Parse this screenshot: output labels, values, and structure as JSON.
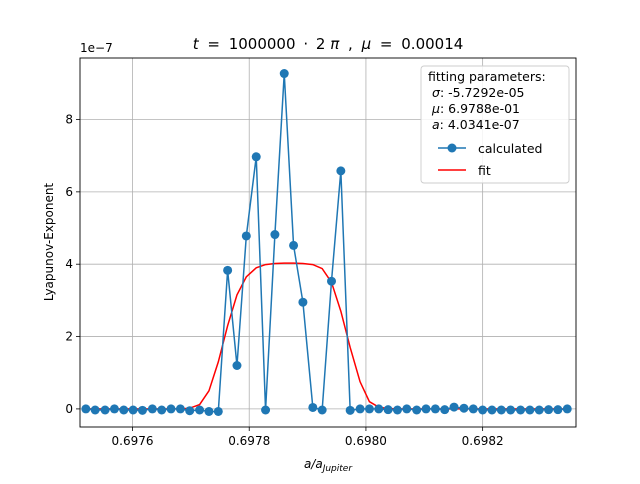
{
  "chart_data": {
    "type": "line",
    "title": {
      "t_symbol": "t",
      "t_value": "1000000",
      "mult": "·",
      "two": "2",
      "pi": "π",
      "sep": ",",
      "mu_symbol": "μ",
      "mu_value": "0.00014",
      "eq": "="
    },
    "xlabel": {
      "base": "a/a",
      "sub": "Jupiter"
    },
    "ylabel": "Lyapunov-Exponent",
    "offset_text": "1e−7",
    "xlim": [
      0.69751,
      0.69836
    ],
    "ylim": [
      -0.5,
      9.7
    ],
    "y_scale_factor": 1e-07,
    "x_ticks": [
      0.6976,
      0.6978,
      0.698,
      0.6982
    ],
    "x_tick_labels": [
      "0.6976",
      "0.6978",
      "0.6980",
      "0.6982"
    ],
    "y_ticks": [
      0,
      2,
      4,
      6,
      8
    ],
    "y_tick_labels": [
      "0",
      "2",
      "4",
      "6",
      "8"
    ],
    "grid": true,
    "legend_placement": "upper right",
    "legend": {
      "title": "fitting parameters:",
      "params": [
        {
          "symbol": "σ",
          "text": ": -5.7292e-05"
        },
        {
          "symbol": "μ",
          "text": ": 6.9788e-01"
        },
        {
          "symbol": "a",
          "text": ": 4.0341e-07"
        }
      ]
    },
    "series": [
      {
        "name": "calculated",
        "color": "#1f77b4",
        "marker": "circle",
        "x": [
          0.69752,
          0.697536,
          0.697553,
          0.697569,
          0.697585,
          0.697601,
          0.697617,
          0.697634,
          0.69765,
          0.697666,
          0.697682,
          0.697698,
          0.697715,
          0.697731,
          0.697747,
          0.697763,
          0.697779,
          0.697795,
          0.697812,
          0.697828,
          0.697844,
          0.69786,
          0.697876,
          0.697892,
          0.697909,
          0.697925,
          0.697941,
          0.697957,
          0.697973,
          0.69799,
          0.698006,
          0.698022,
          0.698038,
          0.698054,
          0.69807,
          0.698087,
          0.698103,
          0.698119,
          0.698135,
          0.698151,
          0.698168,
          0.698184,
          0.6982,
          0.698216,
          0.698232,
          0.698248,
          0.698265,
          0.698281,
          0.698297,
          0.698313,
          0.698329,
          0.698345
        ],
        "y": [
          0.0,
          -0.03,
          -0.03,
          0.0,
          -0.03,
          -0.03,
          -0.04,
          0.0,
          -0.03,
          0.0,
          0.0,
          -0.05,
          -0.03,
          -0.07,
          -0.07,
          3.83,
          1.2,
          4.78,
          6.97,
          -0.03,
          4.82,
          9.27,
          4.52,
          2.95,
          0.04,
          -0.03,
          3.53,
          6.58,
          -0.04,
          0.0,
          0.0,
          0.0,
          -0.02,
          -0.03,
          0.0,
          -0.03,
          0.0,
          0.0,
          -0.02,
          0.05,
          0.02,
          0.0,
          -0.03,
          -0.03,
          -0.03,
          -0.03,
          -0.03,
          -0.03,
          -0.03,
          -0.02,
          -0.02,
          0.0
        ]
      },
      {
        "name": "fit",
        "color": "#ff0000",
        "x": [
          0.69752,
          0.697536,
          0.697553,
          0.697569,
          0.697585,
          0.697601,
          0.697617,
          0.697634,
          0.69765,
          0.697666,
          0.697682,
          0.697698,
          0.697715,
          0.697731,
          0.697747,
          0.697763,
          0.697779,
          0.697795,
          0.697812,
          0.697828,
          0.697844,
          0.69786,
          0.697876,
          0.697892,
          0.697909,
          0.697925,
          0.697941,
          0.697957,
          0.697973,
          0.69799,
          0.698006,
          0.698022,
          0.698038,
          0.698054,
          0.69807,
          0.698087,
          0.698103,
          0.698119,
          0.698135,
          0.698151,
          0.698168,
          0.698184,
          0.6982,
          0.698216,
          0.698232,
          0.698248,
          0.698265,
          0.698281,
          0.698297,
          0.698313,
          0.698329,
          0.698345
        ],
        "y": [
          0.0,
          0.0,
          0.0,
          0.0,
          0.0,
          0.0,
          0.0,
          0.0,
          0.0,
          0.0,
          0.0,
          0.02,
          0.12,
          0.5,
          1.3,
          2.3,
          3.15,
          3.65,
          3.9,
          3.99,
          4.02,
          4.03,
          4.03,
          4.02,
          3.99,
          3.88,
          3.5,
          2.7,
          1.7,
          0.75,
          0.2,
          0.05,
          0.01,
          0.0,
          0.0,
          0.0,
          0.0,
          0.0,
          0.0,
          0.0,
          0.0,
          0.0,
          0.0,
          0.0,
          0.0,
          0.0,
          0.0,
          0.0,
          0.0,
          0.0,
          0.0,
          0.0
        ]
      }
    ]
  }
}
